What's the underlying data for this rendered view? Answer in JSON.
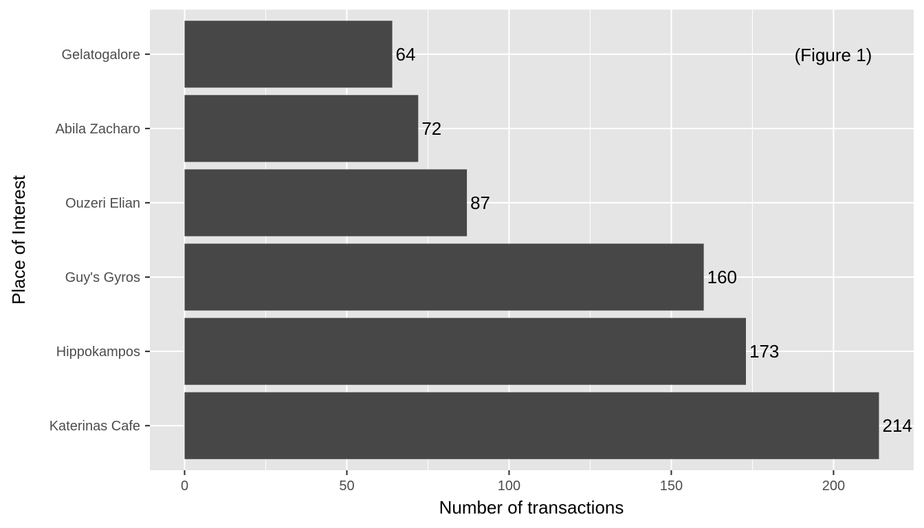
{
  "chart_data": {
    "type": "bar",
    "orientation": "horizontal",
    "categories": [
      "Gelatogalore",
      "Abila Zacharo",
      "Ouzeri Elian",
      "Guy's Gyros",
      "Hippokampos",
      "Katerinas Cafe"
    ],
    "values": [
      64,
      72,
      87,
      160,
      173,
      214
    ],
    "data_labels": [
      "64",
      "72",
      "87",
      "160",
      "173",
      "214"
    ],
    "xlabel": "Number of transactions",
    "ylabel": "Place of Interest",
    "xlim": [
      -10.7,
      224.7
    ],
    "x_ticks": [
      0,
      50,
      100,
      150,
      200
    ],
    "x_tick_labels": [
      "0",
      "50",
      "100",
      "150",
      "200"
    ],
    "annotation": "(Figure 1)",
    "grid": true,
    "legend": "none",
    "colors": {
      "bar": "#474747",
      "panel": "#e5e5e5",
      "grid": "#ffffff"
    }
  }
}
